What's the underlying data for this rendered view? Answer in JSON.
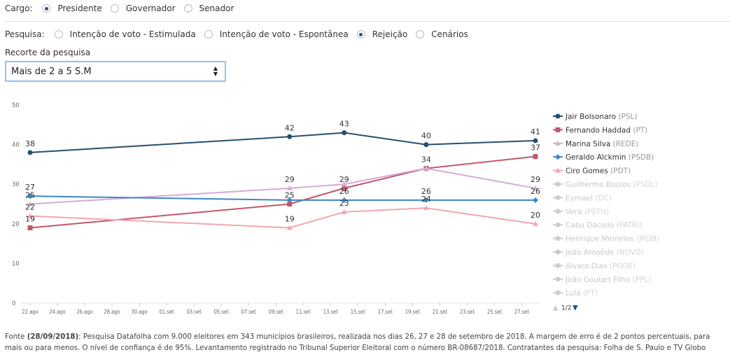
{
  "controls": {
    "cargo": {
      "label": "Cargo:",
      "options": [
        "Presidente",
        "Governador",
        "Senador"
      ],
      "selected": 0
    },
    "pesquisa": {
      "label": "Pesquisa:",
      "options": [
        "Intenção de voto - Estimulada",
        "Intenção de voto - Espontânea",
        "Rejeição",
        "Cenários"
      ],
      "selected": 2
    },
    "recorte": {
      "label": "Recorte da pesquisa",
      "value": "Mais de 2 a 5 S.M"
    }
  },
  "chart_data": {
    "type": "line",
    "x": [
      "22.ago",
      "10.set",
      "14.set",
      "20.set",
      "28.set"
    ],
    "xlim": [
      "22.ago",
      "28.set"
    ],
    "xticks": [
      "22.ago",
      "24.ago",
      "26.ago",
      "28.ago",
      "30.ago",
      "01.set",
      "03.set",
      "05.set",
      "07.set",
      "09.set",
      "11.set",
      "13.set",
      "15.set",
      "17.set",
      "19.set",
      "21.set",
      "23.set",
      "25.set",
      "27.set"
    ],
    "ylim": [
      0,
      50
    ],
    "yticks": [
      0,
      10,
      20,
      30,
      40,
      50
    ],
    "grid": false,
    "legend": "right",
    "series": [
      {
        "name": "Jair Bolsonaro",
        "party": "(PSL)",
        "color": "#25506e",
        "marker": "circle",
        "values": [
          38,
          42,
          43,
          40,
          41
        ]
      },
      {
        "name": "Fernando Haddad",
        "party": "(PT)",
        "color": "#c4566a",
        "marker": "square",
        "values": [
          19,
          25,
          29,
          34,
          37
        ]
      },
      {
        "name": "Marina Silva",
        "party": "(REDE)",
        "color": "#d4abd9",
        "marker": "triangle",
        "values": [
          25,
          29,
          30,
          34,
          29
        ]
      },
      {
        "name": "Geraldo Alckmin",
        "party": "(PSDB)",
        "color": "#3b88c4",
        "marker": "diamond",
        "values": [
          27,
          26,
          26,
          26,
          26
        ]
      },
      {
        "name": "Ciro Gomes",
        "party": "(PDT)",
        "color": "#f2a7b0",
        "marker": "triangle",
        "values": [
          22,
          19,
          23,
          24,
          20
        ]
      },
      {
        "name": "Guilherme Boulos",
        "party": "(PSOL)",
        "color": "#cccccc",
        "marker": "circle",
        "values": [
          null,
          null,
          null,
          null,
          null
        ]
      },
      {
        "name": "Eymael",
        "party": "(DC)",
        "color": "#cccccc",
        "marker": "circle",
        "values": [
          null,
          null,
          null,
          null,
          null
        ]
      },
      {
        "name": "Vera",
        "party": "(PSTU)",
        "color": "#cccccc",
        "marker": "circle",
        "values": [
          null,
          null,
          null,
          null,
          null
        ]
      },
      {
        "name": "Cabo Daciolo",
        "party": "(PATRI)",
        "color": "#cccccc",
        "marker": "circle",
        "values": [
          null,
          null,
          null,
          null,
          null
        ]
      },
      {
        "name": "Henrique Meirelles",
        "party": "(MDB)",
        "color": "#cccccc",
        "marker": "circle",
        "values": [
          null,
          null,
          null,
          null,
          null
        ]
      },
      {
        "name": "João Amoêdo",
        "party": "(NOVO)",
        "color": "#cccccc",
        "marker": "circle",
        "values": [
          null,
          null,
          null,
          null,
          null
        ]
      },
      {
        "name": "Alvaro Dias",
        "party": "(PODE)",
        "color": "#cccccc",
        "marker": "circle",
        "values": [
          null,
          null,
          null,
          null,
          null
        ]
      },
      {
        "name": "João Goulart Filho",
        "party": "(PPL)",
        "color": "#cccccc",
        "marker": "circle",
        "values": [
          null,
          null,
          null,
          null,
          null
        ]
      },
      {
        "name": "Lula",
        "party": "(PT)",
        "color": "#cccccc",
        "marker": "circle",
        "values": [
          null,
          null,
          null,
          null,
          null
        ]
      }
    ],
    "legend_pager": "1/2"
  },
  "footer": {
    "source": "Fonte",
    "date": "(28/09/2018)",
    "text": ": Pesquisa Datafolha com 9.000 eleitores em 343 municípios brasileiros, realizada nos dias 26, 27 e 28 de setembro de 2018. A margem de erro é de 2 pontos percentuais, para mais ou para menos. O nível de confiança é de 95%. Levantamento registrado no Tribunal Superior Eleitoral com o número BR-08687/2018. Contratantes da pesquisa: Folha de S. Paulo e TV Globo"
  }
}
